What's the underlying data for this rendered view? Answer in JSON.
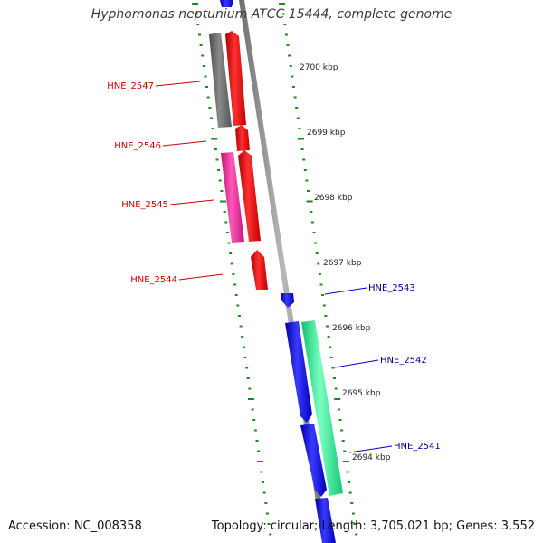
{
  "header": {
    "title": "Hyphomonas neptunium ATCC 15444, complete genome"
  },
  "footer": {
    "accession": "Accession: NC_008358",
    "summary": "Topology: circular; Length: 3,705,021 bp; Genes: 3,552"
  },
  "colors": {
    "background": "#ffffff",
    "backbone": "#8f8f8f",
    "ticks": "#1a8a1a",
    "forward_genes": "#ee1111",
    "reverse_genes": "#1a1aee",
    "grey_feature": "#6b6b6b",
    "pink_feature": "#ee2a9a",
    "green_feature": "#2ee89a",
    "forward_label": "#cc0000",
    "reverse_label": "#00008b"
  },
  "ruler": {
    "unit": "kbp",
    "labels": [
      "2700 kbp",
      "2699 kbp",
      "2698 kbp",
      "2697 kbp",
      "2696 kbp",
      "2695 kbp",
      "2694 kbp"
    ]
  },
  "genes": [
    {
      "id": "HNE_2547",
      "strand": "forward",
      "color": "forward_label"
    },
    {
      "id": "HNE_2546",
      "strand": "forward",
      "color": "forward_label"
    },
    {
      "id": "HNE_2545",
      "strand": "forward",
      "color": "forward_label"
    },
    {
      "id": "HNE_2544",
      "strand": "forward",
      "color": "forward_label"
    },
    {
      "id": "HNE_2543",
      "strand": "reverse",
      "color": "reverse_label"
    },
    {
      "id": "HNE_2542",
      "strand": "reverse",
      "color": "reverse_label"
    },
    {
      "id": "HNE_2541",
      "strand": "reverse",
      "color": "reverse_label"
    }
  ]
}
